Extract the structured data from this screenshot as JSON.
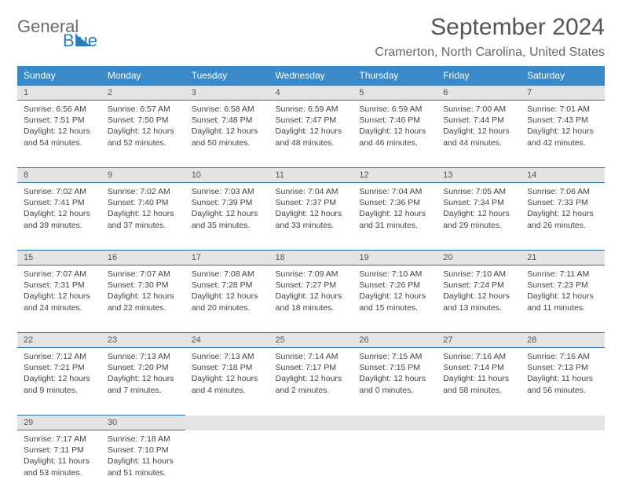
{
  "logo": {
    "word1": "General",
    "word2": "Blue"
  },
  "title": "September 2024",
  "location": "Cramerton, North Carolina, United States",
  "colors": {
    "header_bg": "#3a8ac9",
    "header_text": "#ffffff",
    "daynum_bg": "#e4e4e4",
    "row_border": "#2b6fa8",
    "title_color": "#555555",
    "location_color": "#666666",
    "body_text": "#444444",
    "logo_gray": "#6b6b6b",
    "logo_blue": "#2b7bbf",
    "background": "#ffffff"
  },
  "fonts": {
    "title_pt": 30,
    "location_pt": 16,
    "weekday_pt": 12,
    "daynum_pt": 11,
    "cell_pt": 10.5
  },
  "weekdays": [
    "Sunday",
    "Monday",
    "Tuesday",
    "Wednesday",
    "Thursday",
    "Friday",
    "Saturday"
  ],
  "weeks": [
    [
      {
        "n": "1",
        "sr": "6:56 AM",
        "ss": "7:51 PM",
        "dl": "12 hours and 54 minutes."
      },
      {
        "n": "2",
        "sr": "6:57 AM",
        "ss": "7:50 PM",
        "dl": "12 hours and 52 minutes."
      },
      {
        "n": "3",
        "sr": "6:58 AM",
        "ss": "7:48 PM",
        "dl": "12 hours and 50 minutes."
      },
      {
        "n": "4",
        "sr": "6:59 AM",
        "ss": "7:47 PM",
        "dl": "12 hours and 48 minutes."
      },
      {
        "n": "5",
        "sr": "6:59 AM",
        "ss": "7:46 PM",
        "dl": "12 hours and 46 minutes."
      },
      {
        "n": "6",
        "sr": "7:00 AM",
        "ss": "7:44 PM",
        "dl": "12 hours and 44 minutes."
      },
      {
        "n": "7",
        "sr": "7:01 AM",
        "ss": "7:43 PM",
        "dl": "12 hours and 42 minutes."
      }
    ],
    [
      {
        "n": "8",
        "sr": "7:02 AM",
        "ss": "7:41 PM",
        "dl": "12 hours and 39 minutes."
      },
      {
        "n": "9",
        "sr": "7:02 AM",
        "ss": "7:40 PM",
        "dl": "12 hours and 37 minutes."
      },
      {
        "n": "10",
        "sr": "7:03 AM",
        "ss": "7:39 PM",
        "dl": "12 hours and 35 minutes."
      },
      {
        "n": "11",
        "sr": "7:04 AM",
        "ss": "7:37 PM",
        "dl": "12 hours and 33 minutes."
      },
      {
        "n": "12",
        "sr": "7:04 AM",
        "ss": "7:36 PM",
        "dl": "12 hours and 31 minutes."
      },
      {
        "n": "13",
        "sr": "7:05 AM",
        "ss": "7:34 PM",
        "dl": "12 hours and 29 minutes."
      },
      {
        "n": "14",
        "sr": "7:06 AM",
        "ss": "7:33 PM",
        "dl": "12 hours and 26 minutes."
      }
    ],
    [
      {
        "n": "15",
        "sr": "7:07 AM",
        "ss": "7:31 PM",
        "dl": "12 hours and 24 minutes."
      },
      {
        "n": "16",
        "sr": "7:07 AM",
        "ss": "7:30 PM",
        "dl": "12 hours and 22 minutes."
      },
      {
        "n": "17",
        "sr": "7:08 AM",
        "ss": "7:28 PM",
        "dl": "12 hours and 20 minutes."
      },
      {
        "n": "18",
        "sr": "7:09 AM",
        "ss": "7:27 PM",
        "dl": "12 hours and 18 minutes."
      },
      {
        "n": "19",
        "sr": "7:10 AM",
        "ss": "7:26 PM",
        "dl": "12 hours and 15 minutes."
      },
      {
        "n": "20",
        "sr": "7:10 AM",
        "ss": "7:24 PM",
        "dl": "12 hours and 13 minutes."
      },
      {
        "n": "21",
        "sr": "7:11 AM",
        "ss": "7:23 PM",
        "dl": "12 hours and 11 minutes."
      }
    ],
    [
      {
        "n": "22",
        "sr": "7:12 AM",
        "ss": "7:21 PM",
        "dl": "12 hours and 9 minutes."
      },
      {
        "n": "23",
        "sr": "7:13 AM",
        "ss": "7:20 PM",
        "dl": "12 hours and 7 minutes."
      },
      {
        "n": "24",
        "sr": "7:13 AM",
        "ss": "7:18 PM",
        "dl": "12 hours and 4 minutes."
      },
      {
        "n": "25",
        "sr": "7:14 AM",
        "ss": "7:17 PM",
        "dl": "12 hours and 2 minutes."
      },
      {
        "n": "26",
        "sr": "7:15 AM",
        "ss": "7:15 PM",
        "dl": "12 hours and 0 minutes."
      },
      {
        "n": "27",
        "sr": "7:16 AM",
        "ss": "7:14 PM",
        "dl": "11 hours and 58 minutes."
      },
      {
        "n": "28",
        "sr": "7:16 AM",
        "ss": "7:13 PM",
        "dl": "11 hours and 56 minutes."
      }
    ],
    [
      {
        "n": "29",
        "sr": "7:17 AM",
        "ss": "7:11 PM",
        "dl": "11 hours and 53 minutes."
      },
      {
        "n": "30",
        "sr": "7:18 AM",
        "ss": "7:10 PM",
        "dl": "11 hours and 51 minutes."
      },
      null,
      null,
      null,
      null,
      null
    ]
  ]
}
